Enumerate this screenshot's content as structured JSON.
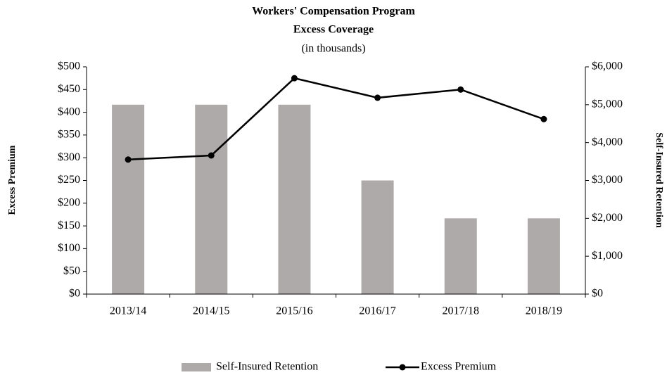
{
  "chart_data": {
    "type": "combo",
    "title": "Workers' Compensation Program",
    "subtitle": "Excess Coverage",
    "annotation": "(in thousands)",
    "y_label": "Excess Premium",
    "y2_label": "Self-Insured Retention",
    "categories": [
      "2013/14",
      "2014/15",
      "2015/16",
      "2016/17",
      "2017/18",
      "2018/19"
    ],
    "series": [
      {
        "name": "Self-Insured Retention",
        "type": "bar",
        "axis": "y2",
        "color": "#aeaaaa",
        "values": [
          5000,
          5000,
          5000,
          3000,
          2000,
          2000
        ]
      },
      {
        "name": "Excess Premium",
        "type": "line",
        "axis": "y",
        "color": "#000000",
        "values": [
          296,
          305,
          475,
          432,
          450,
          385
        ]
      }
    ],
    "ylim": [
      0,
      500
    ],
    "yticks": [
      {
        "value": 0,
        "label": "$0"
      },
      {
        "value": 50,
        "label": "$50"
      },
      {
        "value": 100,
        "label": "$100"
      },
      {
        "value": 150,
        "label": "$150"
      },
      {
        "value": 200,
        "label": "$200"
      },
      {
        "value": 250,
        "label": "$250"
      },
      {
        "value": 300,
        "label": "$300"
      },
      {
        "value": 350,
        "label": "$350"
      },
      {
        "value": 400,
        "label": "$400"
      },
      {
        "value": 450,
        "label": "$450"
      },
      {
        "value": 500,
        "label": "$500"
      }
    ],
    "y2lim": [
      0,
      6000
    ],
    "y2ticks": [
      {
        "value": 0,
        "label": "$0"
      },
      {
        "value": 1000,
        "label": "$1,000"
      },
      {
        "value": 2000,
        "label": "$2,000"
      },
      {
        "value": 3000,
        "label": "$3,000"
      },
      {
        "value": 4000,
        "label": "$4,000"
      },
      {
        "value": 5000,
        "label": "$5,000"
      },
      {
        "value": 6000,
        "label": "$6,000"
      }
    ],
    "legend": "bottom"
  }
}
